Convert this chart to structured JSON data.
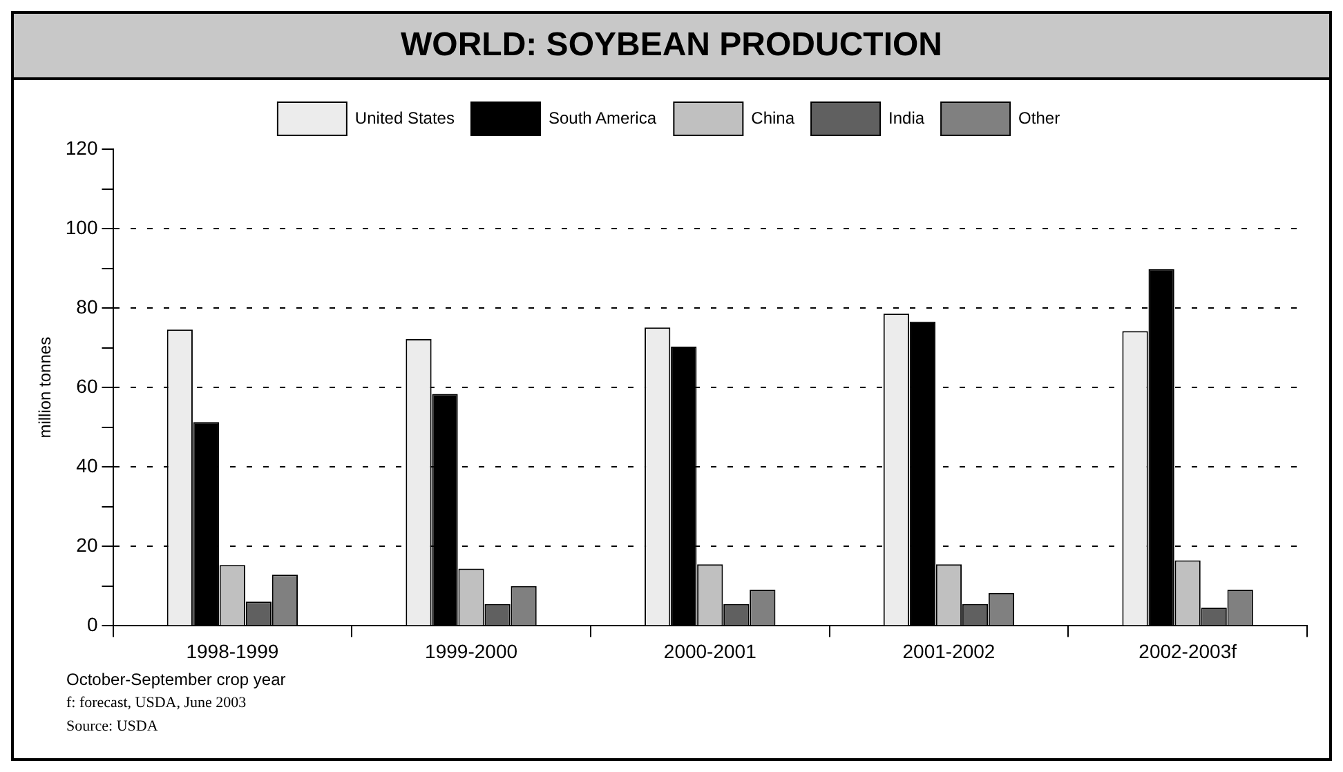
{
  "chart_data": {
    "type": "bar",
    "title": "WORLD: SOYBEAN PRODUCTION",
    "ylabel": "million tonnes",
    "categories": [
      "1998-1999",
      "1999-2000",
      "2000-2001",
      "2001-2002",
      "2002-2003f"
    ],
    "series": [
      {
        "name": "United States",
        "color": "#ececec",
        "values": [
          74.6,
          72.2,
          75.1,
          78.6,
          74.2
        ]
      },
      {
        "name": "South America",
        "color": "#000000",
        "values": [
          51.3,
          58.4,
          70.3,
          76.6,
          89.8
        ]
      },
      {
        "name": "China",
        "color": "#c0c0c0",
        "values": [
          15.3,
          14.4,
          15.5,
          15.5,
          16.5
        ]
      },
      {
        "name": "India",
        "color": "#606060",
        "values": [
          6.1,
          5.5,
          5.5,
          5.5,
          4.6
        ]
      },
      {
        "name": "Other",
        "color": "#808080",
        "values": [
          12.9,
          10.0,
          9.1,
          8.3,
          9.1
        ]
      }
    ],
    "ylim": [
      0,
      120
    ],
    "yticks": [
      0,
      {
        "value": 10,
        "label": null
      },
      20,
      {
        "value": 30,
        "label": null
      },
      40,
      {
        "value": 50,
        "label": null
      },
      60,
      {
        "value": 70,
        "label": null
      },
      80,
      {
        "value": 90,
        "label": null
      },
      100,
      {
        "value": 110,
        "label": null
      },
      120
    ],
    "grid": "y",
    "legend": "top",
    "annotations": [
      "October-September crop year",
      "f: forecast, USDA, June 2003",
      "Source: USDA"
    ]
  }
}
